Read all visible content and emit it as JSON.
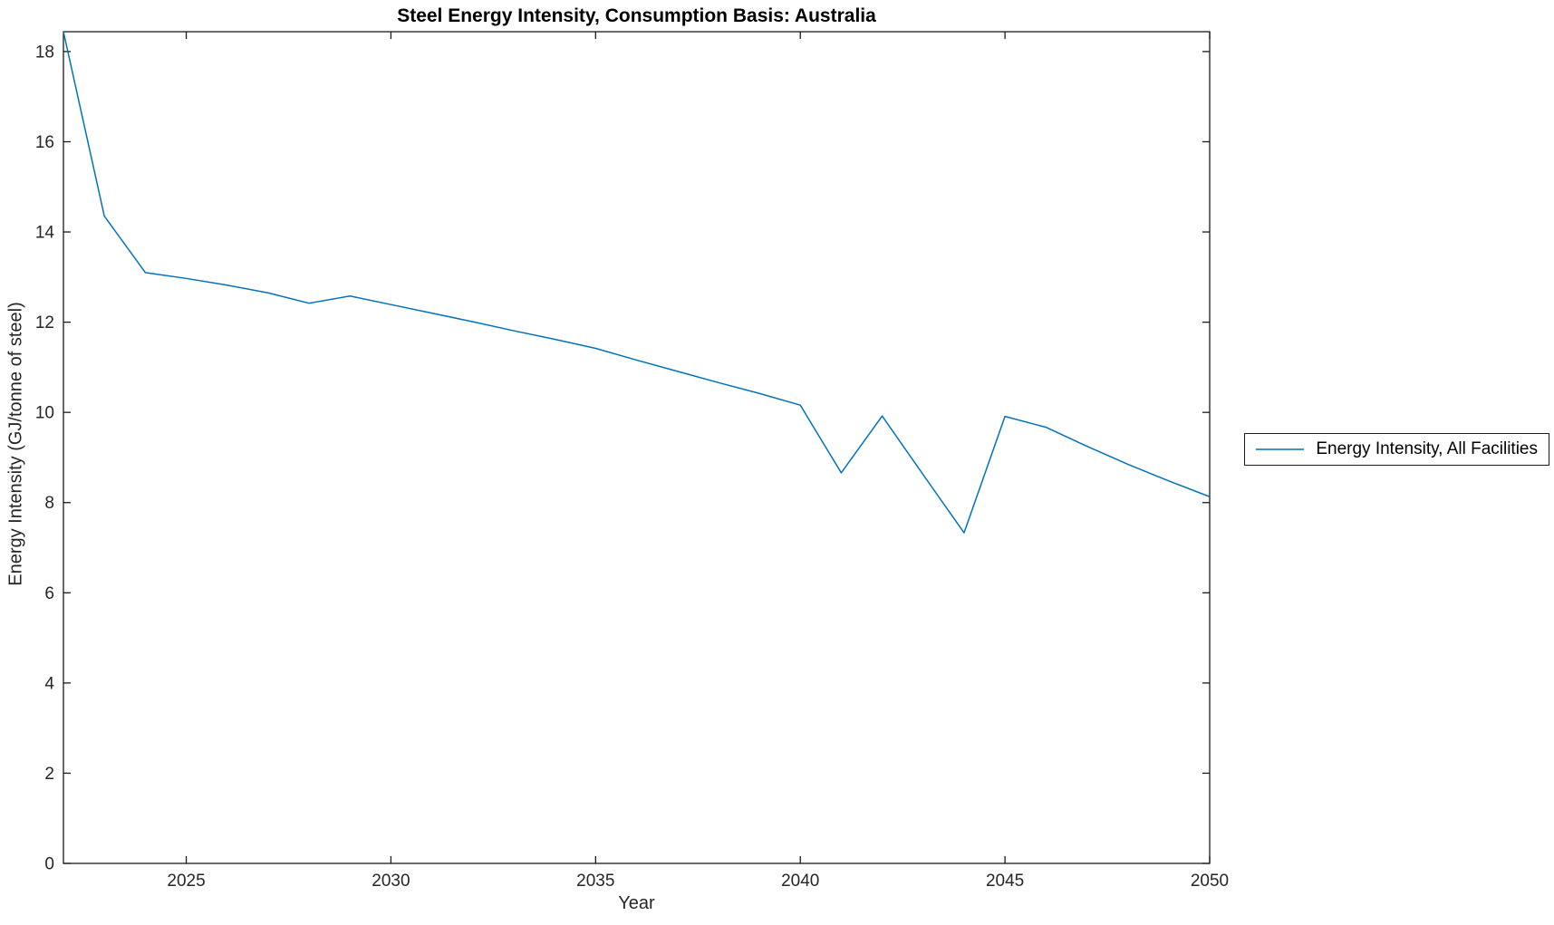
{
  "chart_data": {
    "type": "line",
    "title": "Steel Energy Intensity, Consumption Basis: Australia",
    "xlabel": "Year",
    "ylabel": "Energy Intensity (GJ/tonne of steel)",
    "x": [
      2022,
      2023,
      2024,
      2025,
      2026,
      2027,
      2028,
      2029,
      2030,
      2031,
      2032,
      2033,
      2034,
      2035,
      2036,
      2037,
      2038,
      2039,
      2040,
      2041,
      2042,
      2043,
      2044,
      2045,
      2046,
      2047,
      2048,
      2049,
      2050
    ],
    "series": [
      {
        "name": "Energy Intensity, All Facilities",
        "color": "#0072BD",
        "values": [
          18.44,
          14.35,
          13.1,
          12.97,
          12.82,
          12.65,
          12.42,
          12.58,
          12.39,
          12.2,
          12.01,
          11.81,
          11.62,
          11.42,
          11.16,
          10.91,
          10.66,
          10.42,
          10.16,
          8.66,
          9.92,
          8.62,
          7.33,
          9.91,
          9.67,
          9.25,
          8.85,
          8.48,
          8.13
        ]
      }
    ],
    "xlim": [
      2022,
      2050
    ],
    "ylim": [
      0,
      18.44
    ],
    "xticks": [
      2025,
      2030,
      2035,
      2040,
      2045,
      2050
    ],
    "yticks": [
      0,
      2,
      4,
      6,
      8,
      10,
      12,
      14,
      16,
      18
    ],
    "grid": false,
    "legend_position": "right-outside",
    "axis_color": "#1a1a1a",
    "tick_label_color": "#262626"
  }
}
